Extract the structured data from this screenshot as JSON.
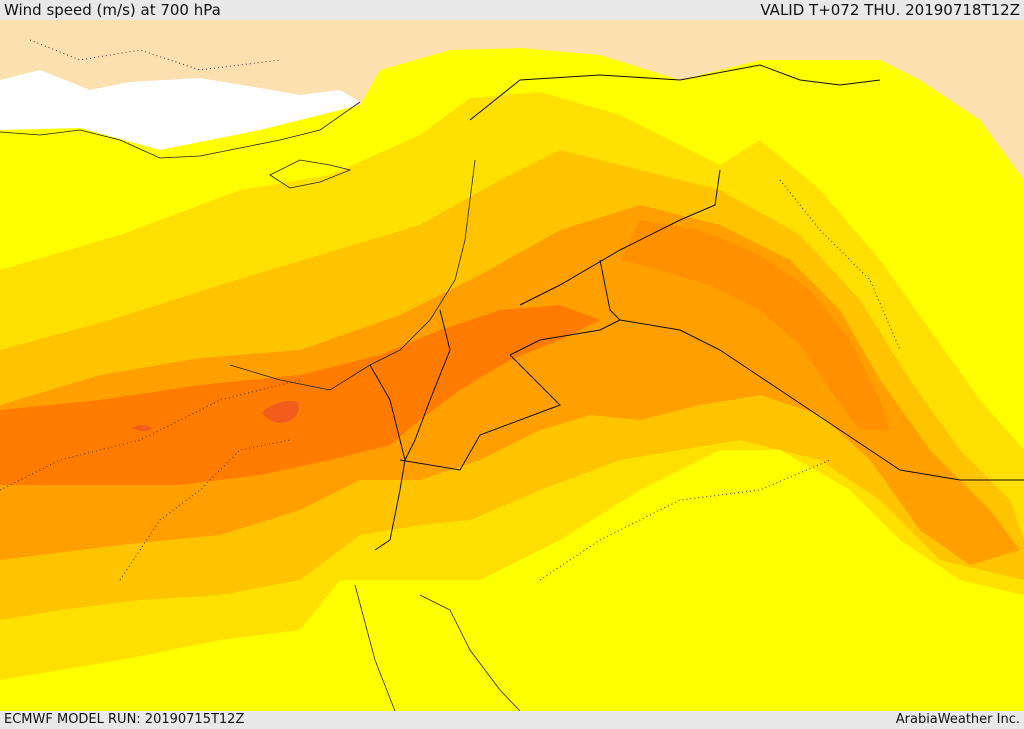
{
  "header": {
    "title": "Wind speed (m/s) at 700 hPa",
    "valid": "VALID T+072 THU. 20190718T12Z"
  },
  "footer": {
    "model_run": "ECMWF MODEL RUN: 20190715T12Z",
    "credit": "ArabiaWeather Inc."
  },
  "colors": {
    "land": "#fde0b0",
    "sea": "#ffffff",
    "band_1": "#ffff00",
    "band_2": "#ffe000",
    "band_3": "#ffc400",
    "band_4": "#ffa000",
    "band_5": "#ff7c00",
    "band_6": "#f25c1c"
  }
}
